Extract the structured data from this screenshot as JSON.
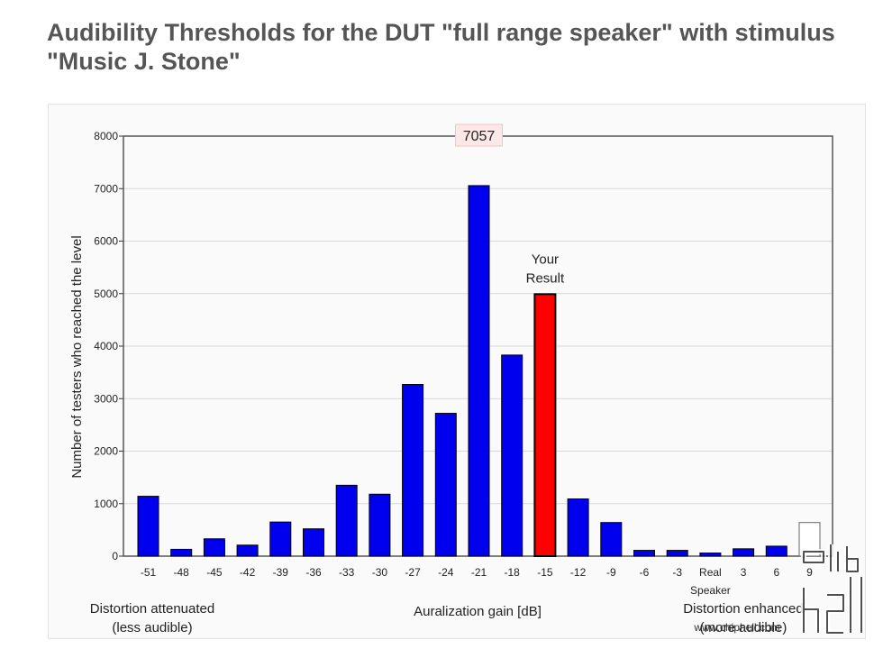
{
  "title": "Audibility Thresholds for the DUT \"full range speaker\" with stimulus \"Music J. Stone\"",
  "chart_data": {
    "type": "bar",
    "categories": [
      "-51",
      "-48",
      "-45",
      "-42",
      "-39",
      "-36",
      "-33",
      "-30",
      "-27",
      "-24",
      "-21",
      "-18",
      "-15",
      "-12",
      "-9",
      "-6",
      "-3",
      "Real",
      "3",
      "6",
      "9"
    ],
    "category_sublabels": {
      "Real": "Speaker"
    },
    "values": [
      1140,
      130,
      330,
      210,
      650,
      520,
      1350,
      1180,
      3270,
      2720,
      7057,
      3830,
      4990,
      1090,
      640,
      110,
      110,
      60,
      140,
      190,
      640
    ],
    "bar_colors": [
      "#0000ee",
      "#0000ee",
      "#0000ee",
      "#0000ee",
      "#0000ee",
      "#0000ee",
      "#0000ee",
      "#0000ee",
      "#0000ee",
      "#0000ee",
      "#0000ee",
      "#0000ee",
      "#ff0000",
      "#0000ee",
      "#0000ee",
      "#0000ee",
      "#0000ee",
      "#0000ee",
      "#0000ee",
      "#0000ee",
      "#ffffff"
    ],
    "highlight_index": 12,
    "highlight_label_lines": [
      "Your",
      "Result"
    ],
    "max_label": "7057",
    "ylim": [
      0,
      8000
    ],
    "yticks": [
      0,
      1000,
      2000,
      3000,
      4000,
      5000,
      6000,
      7000,
      8000
    ],
    "ylabel": "Number of testers who reached the level",
    "xlabel": "Auralization gain [dB]",
    "left_note_lines": [
      "Distortion attenuated",
      "(less audible)"
    ],
    "right_note_lines": [
      "Distortion enhanced",
      "(more audible)"
    ],
    "grid": true,
    "legend": "none"
  },
  "watermark": {
    "logo_text": "chip hell",
    "url": "www.chiphell.com"
  }
}
